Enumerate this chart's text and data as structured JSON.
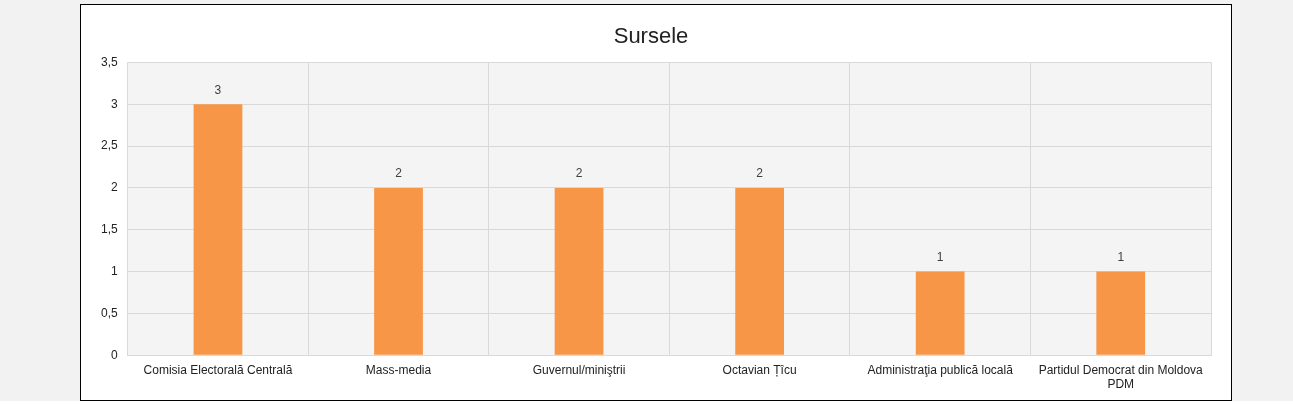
{
  "chart_data": {
    "type": "bar",
    "title": "Sursele",
    "categories": [
      "Comisia Electorală Centrală",
      "Mass-media",
      "Guvernul/miniştrii",
      "Octavian Țîcu",
      "Administraţia publică locală",
      "Partidul Democrat din Moldova PDM"
    ],
    "values": [
      3,
      2,
      2,
      2,
      1,
      1
    ],
    "color": "#f79646",
    "ylim": [
      0,
      3.5
    ],
    "yticks": [
      {
        "value": 0,
        "label": "0"
      },
      {
        "value": 0.5,
        "label": "0,5"
      },
      {
        "value": 1,
        "label": "1"
      },
      {
        "value": 1.5,
        "label": "1,5"
      },
      {
        "value": 2,
        "label": "2"
      },
      {
        "value": 2.5,
        "label": "2,5"
      },
      {
        "value": 3,
        "label": "3"
      },
      {
        "value": 3.5,
        "label": "3,5"
      }
    ],
    "grid": true,
    "data_labels": true
  }
}
